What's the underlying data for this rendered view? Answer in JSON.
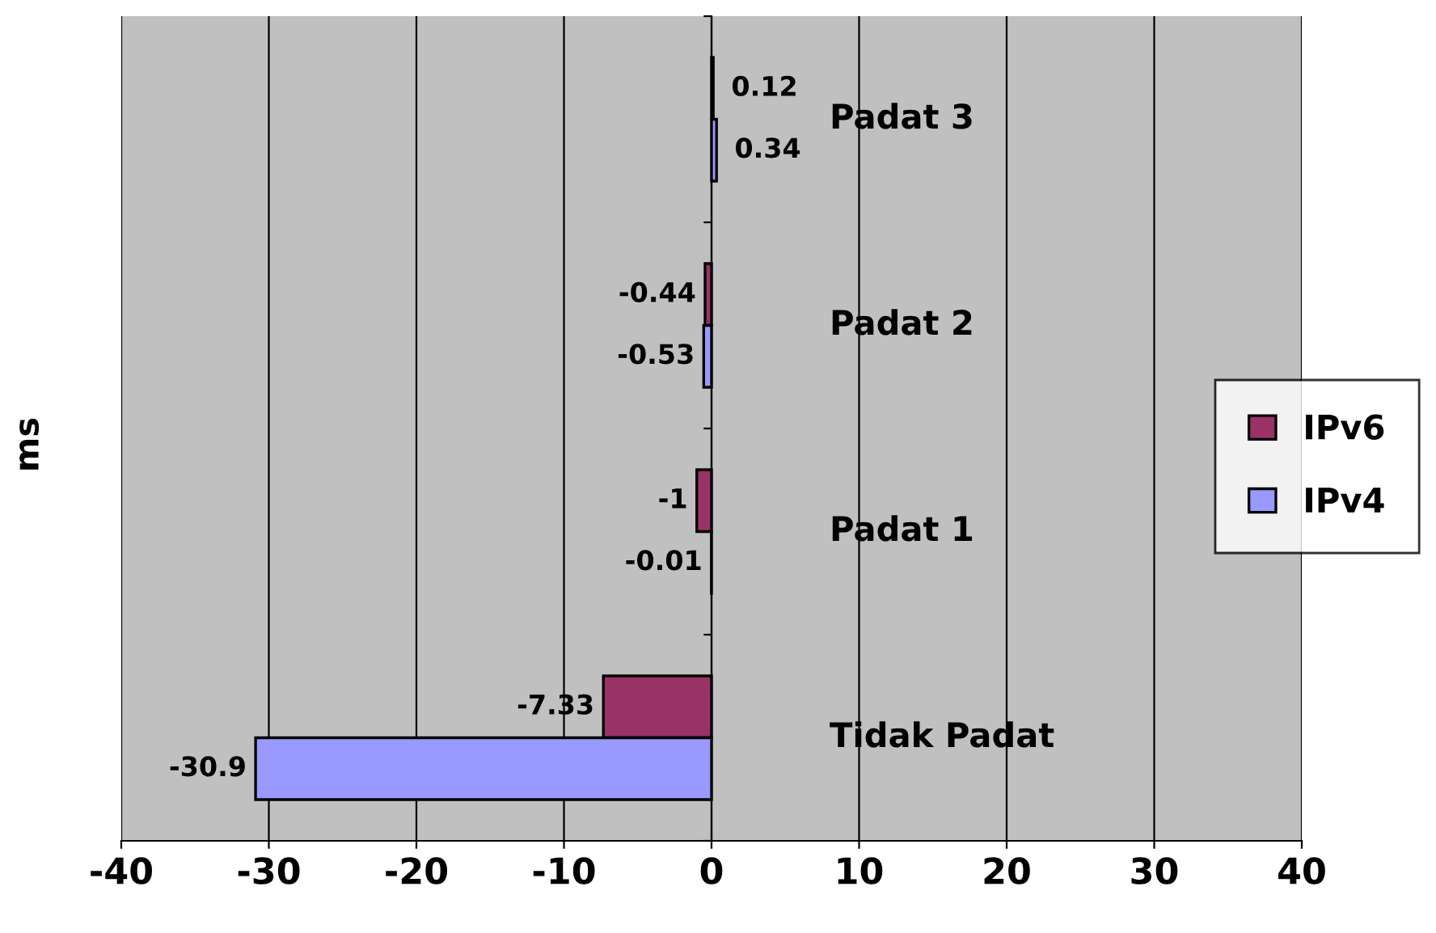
{
  "chart_data": {
    "type": "bar",
    "orientation": "horizontal",
    "ylabel": "ms",
    "categories": [
      "Padat 3",
      "Padat 2",
      "Padat 1",
      "Tidak Padat"
    ],
    "series": [
      {
        "name": "IPv6",
        "color": "#993366",
        "values": [
          0.12,
          -0.44,
          -1,
          -7.33
        ]
      },
      {
        "name": "IPv4",
        "color": "#9999ff",
        "values": [
          0.34,
          -0.53,
          -0.01,
          -30.9
        ]
      }
    ],
    "xlim": [
      -40,
      40
    ],
    "xticks": [
      -40,
      -30,
      -20,
      -10,
      0,
      10,
      20,
      30,
      40
    ],
    "grid": "x",
    "legend": "right",
    "data_labels": true
  }
}
